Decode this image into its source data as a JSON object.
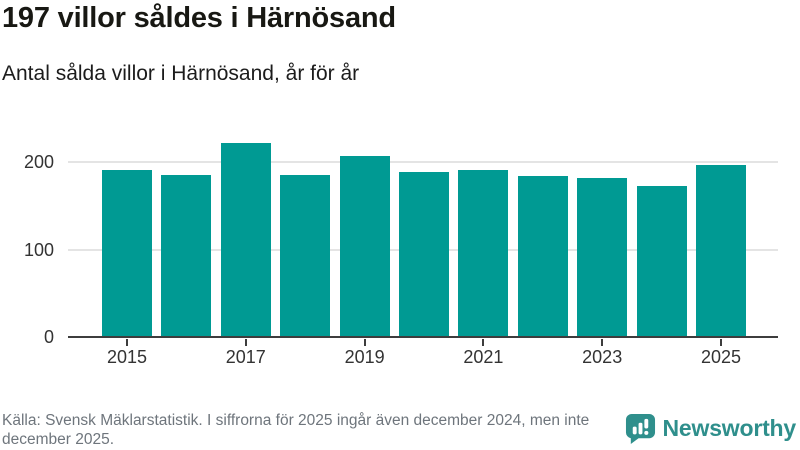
{
  "header": {
    "title": "197 villor såldes i Härnösand",
    "subtitle": "Antal sålda villor i Härnösand, år för år"
  },
  "chart_data": {
    "type": "bar",
    "title": "197 villor såldes i Härnösand",
    "subtitle": "Antal sålda villor i Härnösand, år för år",
    "categories": [
      "2015",
      "2016",
      "2017",
      "2018",
      "2019",
      "2020",
      "2021",
      "2022",
      "2023",
      "2024",
      "2025"
    ],
    "values": [
      191,
      186,
      222,
      186,
      207,
      189,
      191,
      184,
      182,
      173,
      197
    ],
    "xlabel": "",
    "ylabel": "",
    "ylim": [
      0,
      225.5
    ],
    "yticks": [
      0,
      100,
      200
    ],
    "xtick_labels": [
      "2015",
      "2017",
      "2019",
      "2021",
      "2023",
      "2025"
    ],
    "grid": "horizontal",
    "legend": "none",
    "bar_color": "#009a93",
    "grid_color": "#e4e4e4",
    "axis_color": "#3d3d3d"
  },
  "footer": {
    "source_text": "Källa: Svensk Mäklarstatistik. I siffrorna för 2025 ingår även december 2024, men inte december 2025.",
    "brand_name": "Newsworthy",
    "brand_color": "#2f8f8c"
  }
}
